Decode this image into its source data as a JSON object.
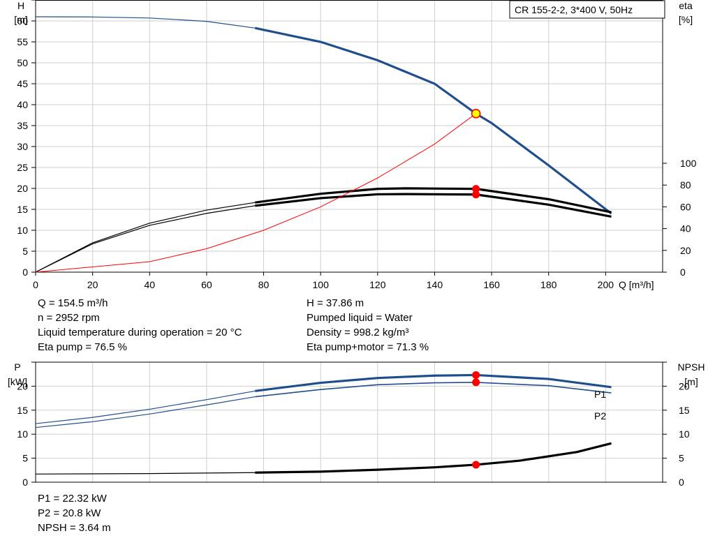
{
  "chart_data": [
    {
      "type": "line",
      "title": "CR 155-2-2, 3*400 V, 50Hz",
      "xlabel": "Q [m³/h]",
      "ylabel_left": [
        "H",
        "[m]"
      ],
      "ylabel_right": [
        "eta",
        "[%]"
      ],
      "xlim": [
        0,
        220
      ],
      "ylim_left": [
        0,
        65
      ],
      "ylim_right": [
        0,
        100
      ],
      "xticks": [
        "0",
        "20",
        "40",
        "60",
        "80",
        "100",
        "120",
        "140",
        "160",
        "180",
        "200"
      ],
      "yticks_left": [
        "0",
        "5",
        "10",
        "15",
        "20",
        "25",
        "30",
        "35",
        "40",
        "45",
        "50",
        "55",
        "60"
      ],
      "yticks_right": [
        "0",
        "20",
        "40",
        "60",
        "80",
        "100"
      ],
      "grid": true,
      "series": [
        {
          "axis": "left",
          "color": "#1f4e8c",
          "solid_from": 77,
          "points": [
            [
              0,
              61
            ],
            [
              20,
              60.95
            ],
            [
              40,
              60.7
            ],
            [
              60,
              59.9
            ],
            [
              77,
              58.3
            ],
            [
              100,
              55
            ],
            [
              120,
              50.6
            ],
            [
              140,
              45
            ],
            [
              154.5,
              37.86
            ],
            [
              160,
              35.6
            ],
            [
              180,
              25.5
            ],
            [
              202,
              14
            ]
          ]
        },
        {
          "axis": "right",
          "color": "#000000",
          "solid_from": 77,
          "points": [
            [
              0,
              0
            ],
            [
              20,
              27
            ],
            [
              40,
              45
            ],
            [
              60,
              57
            ],
            [
              77,
              64
            ],
            [
              100,
              72
            ],
            [
              120,
              76.5
            ],
            [
              130,
              77
            ],
            [
              154.5,
              76.5
            ],
            [
              180,
              67
            ],
            [
              202,
              55
            ]
          ]
        },
        {
          "axis": "right",
          "color": "#000000",
          "solid_from": 77,
          "points": [
            [
              0,
              0
            ],
            [
              20,
              26
            ],
            [
              40,
              43
            ],
            [
              60,
              54
            ],
            [
              77,
              61
            ],
            [
              100,
              68
            ],
            [
              120,
              71.5
            ],
            [
              130,
              71.7
            ],
            [
              154.5,
              71.3
            ],
            [
              180,
              62
            ],
            [
              202,
              51
            ]
          ]
        },
        {
          "axis": "left",
          "color": "#ff0000",
          "thin": true,
          "points": [
            [
              0,
              0
            ],
            [
              40,
              2.5
            ],
            [
              60,
              5.6
            ],
            [
              80,
              10
            ],
            [
              100,
              15.6
            ],
            [
              120,
              22.5
            ],
            [
              140,
              30.6
            ],
            [
              154.5,
              37.86
            ]
          ]
        }
      ],
      "markers": [
        {
          "x": 154.5,
          "y": 37.86,
          "axis": "left",
          "style": "yellow"
        },
        {
          "x": 154.5,
          "y": 76.5,
          "axis": "right",
          "style": "red"
        },
        {
          "x": 154.5,
          "y": 71.3,
          "axis": "right",
          "style": "red"
        }
      ]
    },
    {
      "type": "line",
      "ylabel_left": [
        "P",
        "[kW]"
      ],
      "ylabel_right": [
        "NPSH",
        "[m]"
      ],
      "xlim": [
        0,
        220
      ],
      "ylim": [
        0,
        25
      ],
      "yticks_left": [
        "0",
        "5",
        "10",
        "15",
        "20"
      ],
      "yticks_right": [
        "0",
        "5",
        "10",
        "15",
        "20"
      ],
      "grid": true,
      "series": [
        {
          "name": "P1",
          "color": "#1f4e8c",
          "solid_from": 77,
          "points": [
            [
              0,
              12.2
            ],
            [
              20,
              13.5
            ],
            [
              40,
              15.2
            ],
            [
              60,
              17.2
            ],
            [
              77,
              19
            ],
            [
              100,
              20.7
            ],
            [
              120,
              21.7
            ],
            [
              140,
              22.2
            ],
            [
              154.5,
              22.32
            ],
            [
              180,
              21.5
            ],
            [
              202,
              19.8
            ]
          ]
        },
        {
          "name": "P2",
          "color": "#1f4e8c",
          "solid_from": 77,
          "thin": true,
          "points": [
            [
              0,
              11.4
            ],
            [
              20,
              12.6
            ],
            [
              40,
              14.2
            ],
            [
              60,
              16.1
            ],
            [
              77,
              17.8
            ],
            [
              100,
              19.3
            ],
            [
              120,
              20.3
            ],
            [
              140,
              20.7
            ],
            [
              154.5,
              20.8
            ],
            [
              180,
              20.1
            ],
            [
              202,
              18.6
            ]
          ]
        },
        {
          "name": "NPSH",
          "color": "#000000",
          "solid_from": 77,
          "points": [
            [
              0,
              1.7
            ],
            [
              40,
              1.8
            ],
            [
              77,
              2.0
            ],
            [
              100,
              2.2
            ],
            [
              120,
              2.6
            ],
            [
              140,
              3.1
            ],
            [
              154.5,
              3.64
            ],
            [
              170,
              4.5
            ],
            [
              190,
              6.3
            ],
            [
              202,
              8.1
            ]
          ]
        }
      ],
      "markers": [
        {
          "x": 154.5,
          "y": 22.32,
          "style": "red"
        },
        {
          "x": 154.5,
          "y": 20.8,
          "style": "red"
        },
        {
          "x": 154.5,
          "y": 3.64,
          "style": "red"
        }
      ]
    }
  ],
  "duty_info": {
    "left": [
      "Q = 154.5 m³/h",
      "n = 2952 rpm",
      "Liquid temperature during operation = 20 °C",
      "Eta pump = 76.5 %"
    ],
    "right": [
      "H = 37.86 m",
      "Pumped liquid = Water",
      "Density = 998.2 kg/m³",
      "Eta pump+motor = 71.3 %"
    ]
  },
  "power_info": [
    "P1 = 22.32 kW",
    "P2 = 20.8 kW",
    "NPSH = 3.64 m"
  ]
}
